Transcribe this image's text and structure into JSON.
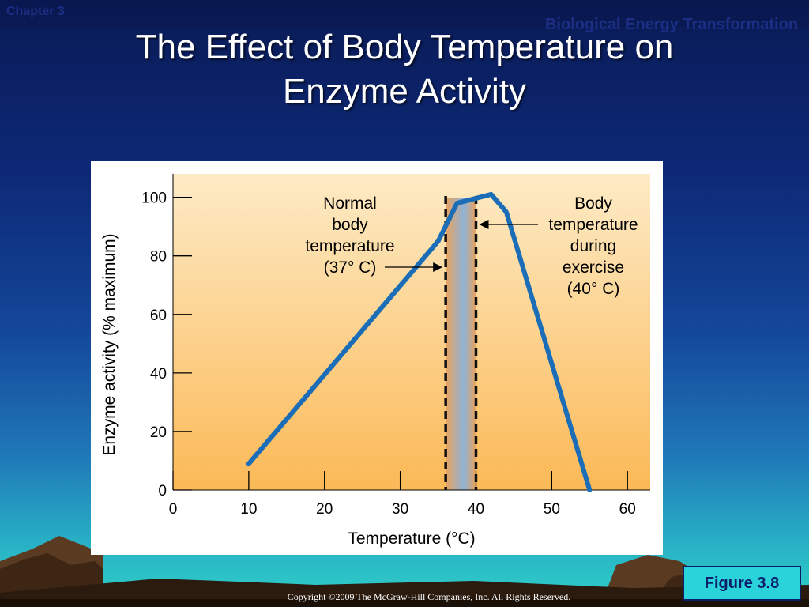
{
  "header": {
    "chapter": "Chapter 3",
    "section": "Biological Energy Transformation"
  },
  "slide": {
    "title_line1": "The Effect of Body Temperature on",
    "title_line2": "Enzyme Activity",
    "figure_label": "Figure 3.8",
    "copyright": "Copyright ©2009 The McGraw-Hill Companies, Inc. All Rights Reserved."
  },
  "colors": {
    "curve": "#1a6db6",
    "plot_top": "#fdebc6",
    "plot_bottom": "#fbb957",
    "band_edge": "#eaa25d",
    "band_center": "#8fb2d6"
  },
  "chart_data": {
    "type": "line",
    "title": "",
    "xlabel": "Temperature (°C)",
    "ylabel": "Enzyme activity (% maximum)",
    "xlim": [
      0,
      63
    ],
    "ylim": [
      0,
      108
    ],
    "x_ticks": [
      0,
      10,
      20,
      30,
      40,
      50,
      60
    ],
    "y_ticks": [
      0,
      20,
      40,
      60,
      80,
      100
    ],
    "series": [
      {
        "x": [
          10,
          35,
          37.5,
          42,
          44,
          55
        ],
        "y": [
          9,
          85,
          98,
          101,
          95,
          0
        ]
      }
    ],
    "reference_lines": [
      {
        "x": 36,
        "style": "dashed"
      },
      {
        "x": 40,
        "style": "dashed"
      }
    ],
    "shaded_band": [
      36,
      40
    ],
    "annotations": [
      {
        "lines": [
          "Normal",
          "body",
          "temperature",
          "(37° C)"
        ],
        "points_to_x": 36
      },
      {
        "lines": [
          "Body",
          "temperature",
          "during",
          "exercise",
          "(40° C)"
        ],
        "points_to_x": 40
      }
    ]
  }
}
